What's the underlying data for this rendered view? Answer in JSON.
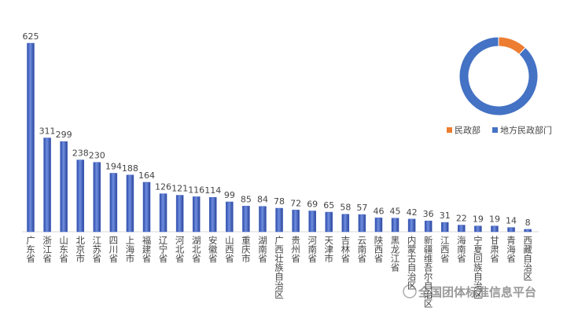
{
  "chart_data": [
    {
      "type": "bar",
      "categories": [
        "广东省",
        "浙江省",
        "山东省",
        "北京市",
        "江苏省",
        "四川省",
        "上海市",
        "福建省",
        "辽宁省",
        "河北省",
        "湖北省",
        "安徽省",
        "山西省",
        "重庆市",
        "湖南省",
        "广西壮族自治区",
        "贵州省",
        "河南省",
        "天津市",
        "吉林省",
        "云南省",
        "陕西省",
        "黑龙江省",
        "内蒙古自治区",
        "新疆维吾尔自治区",
        "江西省",
        "海南省",
        "宁夏回族自治区",
        "甘肃省",
        "青海省",
        "西藏自治区"
      ],
      "values": [
        625,
        311,
        299,
        238,
        230,
        194,
        188,
        164,
        126,
        121,
        116,
        114,
        99,
        85,
        84,
        78,
        72,
        69,
        65,
        58,
        57,
        46,
        45,
        42,
        36,
        31,
        22,
        19,
        19,
        14,
        8
      ],
      "color": "#3f5fbf",
      "annotation": "全国团体标准信息平台"
    },
    {
      "type": "donut",
      "categories": [
        "民政部",
        "地方民政部门"
      ],
      "values": [
        12,
        88
      ],
      "colors": [
        "#ed7d31",
        "#4472c4"
      ]
    }
  ]
}
